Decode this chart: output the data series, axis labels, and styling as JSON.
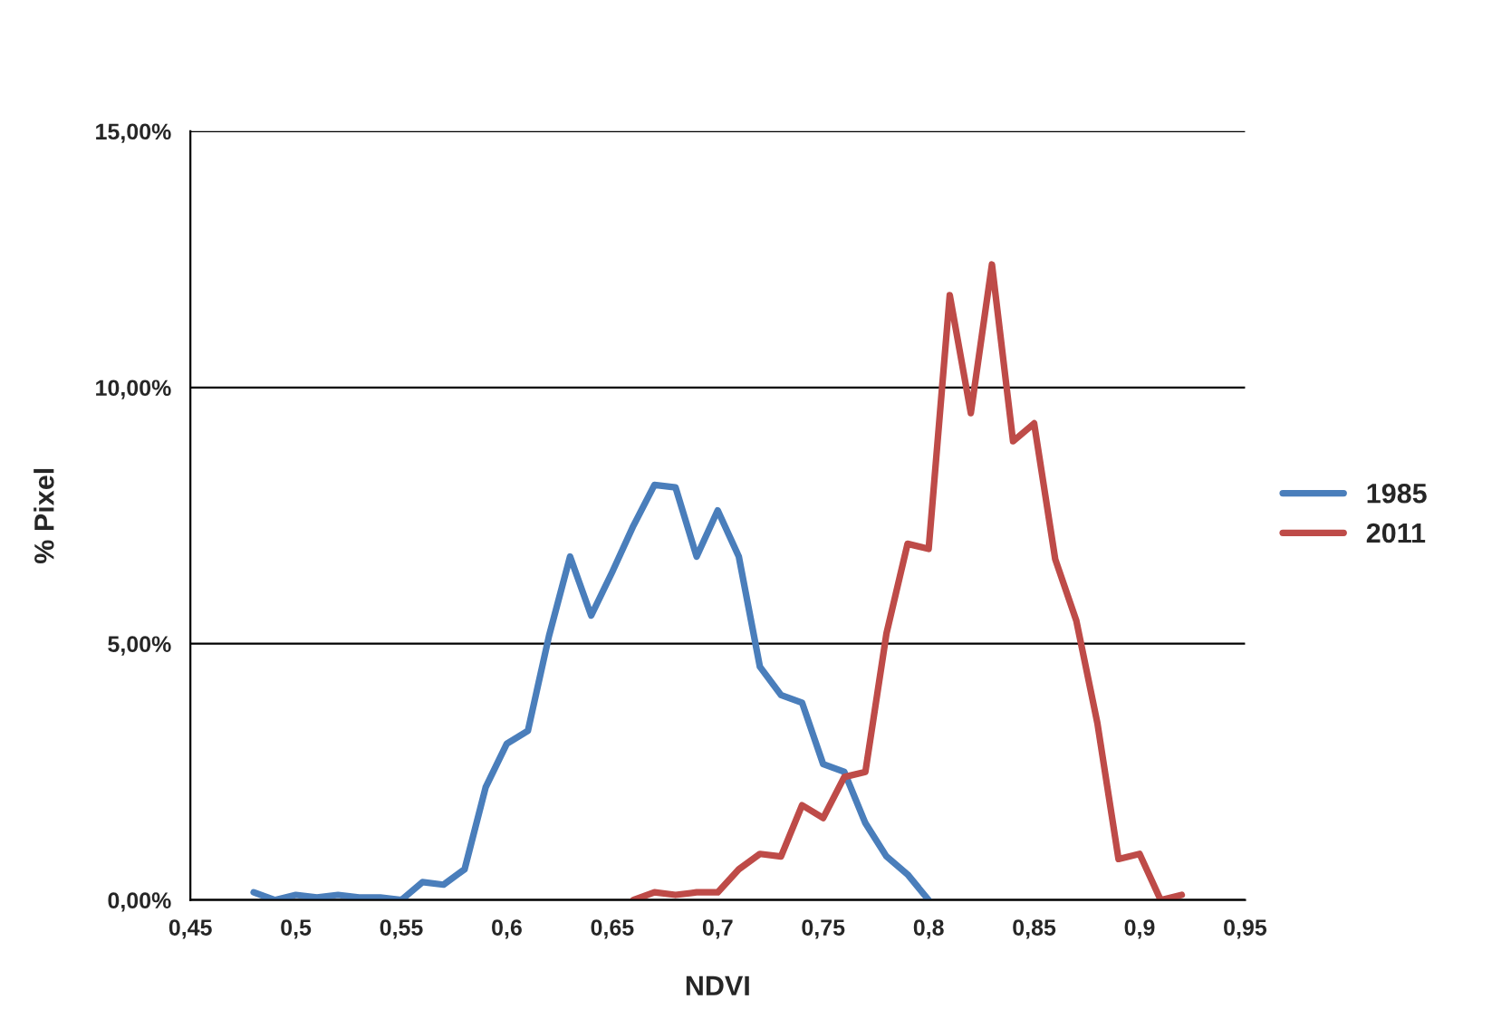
{
  "chart_data": {
    "type": "line",
    "xlabel": "NDVI",
    "ylabel": "% Pixel",
    "xlim": [
      0.45,
      0.95
    ],
    "xticks": [
      {
        "value": 0.45,
        "label": "0,45"
      },
      {
        "value": 0.5,
        "label": "0,5"
      },
      {
        "value": 0.55,
        "label": "0,55"
      },
      {
        "value": 0.6,
        "label": "0,6"
      },
      {
        "value": 0.65,
        "label": "0,65"
      },
      {
        "value": 0.7,
        "label": "0,7"
      },
      {
        "value": 0.75,
        "label": "0,75"
      },
      {
        "value": 0.8,
        "label": "0,8"
      },
      {
        "value": 0.85,
        "label": "0,85"
      },
      {
        "value": 0.9,
        "label": "0,9"
      },
      {
        "value": 0.95,
        "label": "0,95"
      }
    ],
    "ylim": [
      0,
      15
    ],
    "yticks": [
      {
        "value": 0,
        "label": "0,00%"
      },
      {
        "value": 5,
        "label": "5,00%"
      },
      {
        "value": 10,
        "label": "10,00%"
      },
      {
        "value": 15,
        "label": "15,00%"
      }
    ],
    "grid": "y",
    "legend": "right",
    "marker": "none",
    "line_style": "solid",
    "series": [
      {
        "name": "1985",
        "color": "#4a7ebb",
        "x": [
          0.48,
          0.49,
          0.5,
          0.51,
          0.52,
          0.53,
          0.54,
          0.55,
          0.56,
          0.57,
          0.58,
          0.59,
          0.6,
          0.61,
          0.62,
          0.63,
          0.64,
          0.65,
          0.66,
          0.67,
          0.68,
          0.69,
          0.7,
          0.71,
          0.72,
          0.73,
          0.74,
          0.75,
          0.76,
          0.77,
          0.78,
          0.79,
          0.8
        ],
        "values": [
          0.15,
          0,
          0.1,
          0.05,
          0.1,
          0.05,
          0.05,
          0,
          0.35,
          0.3,
          0.6,
          2.2,
          3.05,
          3.3,
          5.15,
          6.7,
          5.55,
          6.4,
          7.3,
          8.1,
          8.05,
          6.7,
          7.6,
          6.7,
          4.55,
          4.0,
          3.85,
          2.65,
          2.5,
          1.5,
          0.85,
          0.5,
          0
        ]
      },
      {
        "name": "2011",
        "color": "#be4b48",
        "x": [
          0.66,
          0.67,
          0.68,
          0.69,
          0.7,
          0.71,
          0.72,
          0.73,
          0.74,
          0.75,
          0.76,
          0.77,
          0.78,
          0.79,
          0.8,
          0.81,
          0.82,
          0.83,
          0.84,
          0.85,
          0.86,
          0.87,
          0.88,
          0.89,
          0.9,
          0.91,
          0.92
        ],
        "values": [
          0,
          0.15,
          0.1,
          0.15,
          0.15,
          0.6,
          0.9,
          0.85,
          1.85,
          1.6,
          2.4,
          2.5,
          5.2,
          6.95,
          6.85,
          11.8,
          9.5,
          12.4,
          8.95,
          9.3,
          6.65,
          5.45,
          3.45,
          0.8,
          0.9,
          0,
          0.1
        ]
      }
    ]
  }
}
